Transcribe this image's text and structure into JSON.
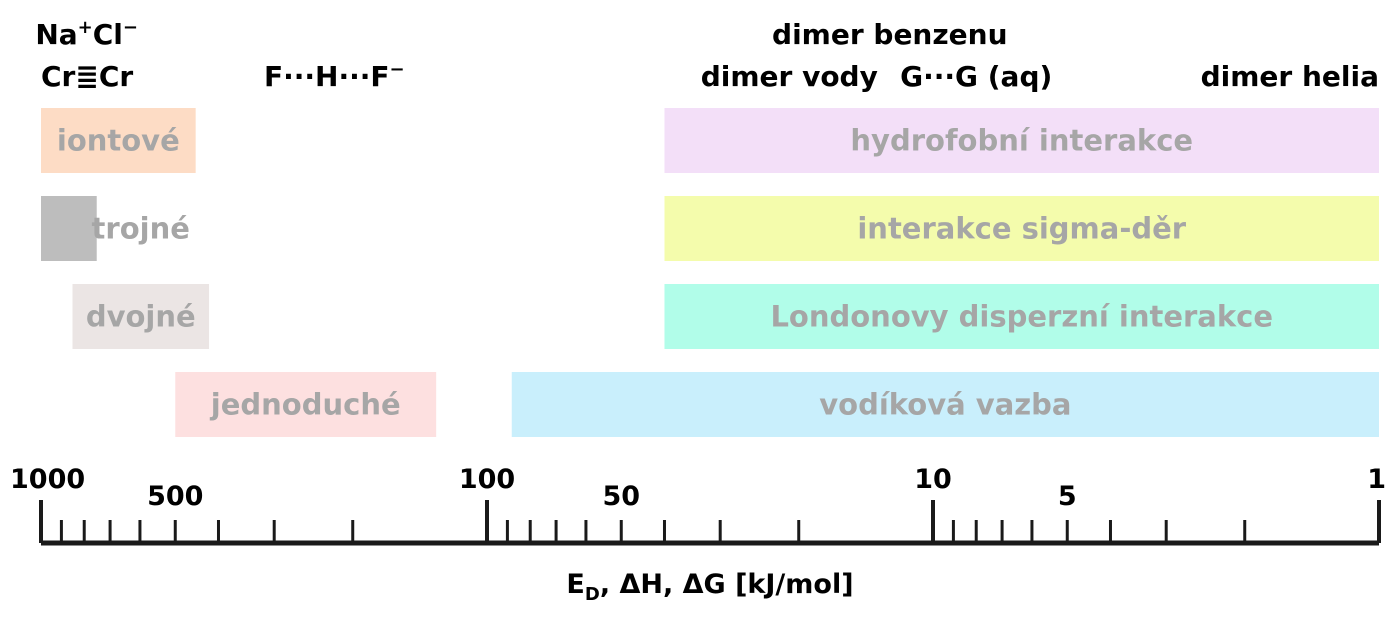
{
  "chart_data": {
    "type": "bar",
    "orientation": "horizontal",
    "x_scale": "log",
    "x_reversed": true,
    "xlim": [
      1000,
      1
    ],
    "xlabel": "E_D, ΔH, ΔG [kJ/mol]",
    "xlabel_parts": {
      "main1": "E",
      "sub": "D",
      "main2": ", ΔH, ΔG [kJ/mol]"
    },
    "title": "",
    "grid": false,
    "legend": "none",
    "x_tick_labels": [
      {
        "value": 1000,
        "label": "1000"
      },
      {
        "value": 500,
        "label": "500"
      },
      {
        "value": 100,
        "label": "100"
      },
      {
        "value": 50,
        "label": "50"
      },
      {
        "value": 10,
        "label": "10"
      },
      {
        "value": 5,
        "label": "5"
      },
      {
        "value": 1,
        "label": "1"
      }
    ],
    "major_ticks": [
      1000,
      100,
      10,
      1
    ],
    "minor_ticks": [
      900,
      800,
      700,
      600,
      500,
      400,
      300,
      200,
      90,
      80,
      70,
      60,
      50,
      40,
      30,
      20,
      9,
      8,
      7,
      6,
      5,
      4,
      3,
      2
    ],
    "bars": [
      {
        "label": "iontové",
        "row": 0,
        "range": [
          1000,
          450
        ],
        "color": "#fddcc5"
      },
      {
        "label": "hydrofobní interakce",
        "row": 0,
        "range": [
          40,
          1
        ],
        "color": "#f3dff8"
      },
      {
        "label": "trojné",
        "row": 1,
        "range": [
          1000,
          750
        ],
        "color": "#bdbdbd",
        "label_outside": true
      },
      {
        "label": "interakce sigma-děr",
        "row": 1,
        "range": [
          40,
          1
        ],
        "color": "#f4fcac"
      },
      {
        "label": "dvojné",
        "row": 2,
        "range": [
          850,
          420
        ],
        "color": "#ebe5e4"
      },
      {
        "label": "Londonovy disperzní interakce",
        "row": 2,
        "range": [
          40,
          1
        ],
        "color": "#b1fde9"
      },
      {
        "label": "jednoduché",
        "row": 3,
        "range": [
          500,
          130
        ],
        "color": "#fde0e0"
      },
      {
        "label": "vodíková vazba",
        "row": 3,
        "range": [
          88,
          1
        ],
        "color": "#c9effc"
      }
    ],
    "annotations": [
      {
        "id": "crcr",
        "x": 1000,
        "anchor": "start",
        "level": 1,
        "parts": {
          "left": "Cr",
          "bond": "≣",
          "right": "Cr"
        }
      },
      {
        "id": "nacl",
        "x": 790,
        "anchor": "middle",
        "level": 0,
        "parts": {
          "a": "Na",
          "sup1": "+",
          "b": "Cl",
          "sup2": "−"
        }
      },
      {
        "id": "fhf",
        "x": 220,
        "anchor": "middle",
        "level": 1,
        "parts": {
          "text": "F···H···F",
          "sup": "−"
        }
      },
      {
        "id": "water-dimer",
        "x": 21,
        "anchor": "middle",
        "level": 1,
        "text": "dimer vody"
      },
      {
        "id": "benzene-dimer",
        "x": 12.5,
        "anchor": "middle",
        "level": 0,
        "text": "dimer benzenu"
      },
      {
        "id": "gg",
        "x": 8,
        "anchor": "middle",
        "level": 1,
        "text": "G···G (aq)"
      },
      {
        "id": "helium-dimer",
        "x": 1,
        "anchor": "end",
        "level": 1,
        "text": "dimer helia"
      }
    ]
  }
}
